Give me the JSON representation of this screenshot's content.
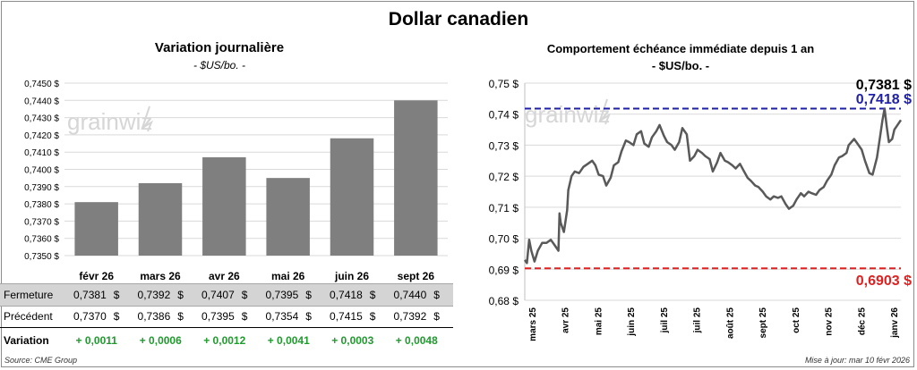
{
  "title": "Dollar canadien",
  "left_chart": {
    "title": "Variation journalière",
    "subtitle": "- $US/bo. -",
    "categories": [
      "févr 26",
      "mars 26",
      "avr 26",
      "mai 26",
      "juin 26",
      "sept 26"
    ],
    "y_ticks": [
      "0,7450 $",
      "0,7440 $",
      "0,7430 $",
      "0,7420 $",
      "0,7410 $",
      "0,7400 $",
      "0,7390 $",
      "0,7380 $",
      "0,7370 $",
      "0,7360 $",
      "0,7350 $"
    ]
  },
  "right_chart": {
    "title": "Comportement échéance immédiate depuis 1 an",
    "subtitle": "- $US/bo. -",
    "y_ticks": [
      "0,75 $",
      "0,74 $",
      "0,73 $",
      "0,72 $",
      "0,71 $",
      "0,70 $",
      "0,69 $",
      "0,68 $"
    ],
    "x_ticks": [
      "mars 25",
      "avr 25",
      "mai 25",
      "juin 25",
      "juil 25",
      "juil 25",
      "août 25",
      "sept 25",
      "oct 25",
      "nov 25",
      "déc 25",
      "janv 26"
    ],
    "last_label": "0,7381 $",
    "high_label": "0,7418 $",
    "low_label": "0,6903 $"
  },
  "table": {
    "rows": [
      {
        "label": "Fermeture",
        "values": [
          "0,7381",
          "0,7392",
          "0,7407",
          "0,7395",
          "0,7418",
          "0,7440"
        ]
      },
      {
        "label": "Précédent",
        "values": [
          "0,7370",
          "0,7386",
          "0,7395",
          "0,7354",
          "0,7415",
          "0,7392"
        ]
      },
      {
        "label": "Variation",
        "values": [
          "+ 0,0011",
          "+ 0,0006",
          "+ 0,0012",
          "+ 0,0041",
          "+ 0,0003",
          "+ 0,0048"
        ]
      }
    ],
    "currency": "$"
  },
  "source": "Source: CME Group",
  "update": "Mise à jour: mar 10 févr 2026",
  "watermark": "grainwiz",
  "chart_data": [
    {
      "type": "bar",
      "title": "Variation journalière",
      "subtitle": "- $US/bo. -",
      "categories": [
        "févr 26",
        "mars 26",
        "avr 26",
        "mai 26",
        "juin 26",
        "sept 26"
      ],
      "values": [
        0.7381,
        0.7392,
        0.7407,
        0.7395,
        0.7418,
        0.744
      ],
      "ylim": [
        0.735,
        0.745
      ],
      "color": "#7f7f7f",
      "grid": true
    },
    {
      "type": "line",
      "title": "Comportement échéance immédiate depuis 1 an",
      "subtitle": "- $US/bo. -",
      "ylim": [
        0.68,
        0.75
      ],
      "x_range": [
        "2025-03-01",
        "2026-02-10"
      ],
      "color": "#595959",
      "high_line": {
        "value": 0.7418,
        "color": "#1f1fa8"
      },
      "low_line": {
        "value": 0.6903,
        "color": "#e02020"
      },
      "points": [
        [
          "2025-03-01",
          0.693
        ],
        [
          "2025-03-03",
          0.692
        ],
        [
          "2025-03-05",
          0.6995
        ],
        [
          "2025-03-07",
          0.696
        ],
        [
          "2025-03-10",
          0.6925
        ],
        [
          "2025-03-13",
          0.696
        ],
        [
          "2025-03-17",
          0.6985
        ],
        [
          "2025-03-21",
          0.6985
        ],
        [
          "2025-03-25",
          0.6995
        ],
        [
          "2025-03-28",
          0.698
        ],
        [
          "2025-04-01",
          0.696
        ],
        [
          "2025-04-02",
          0.708
        ],
        [
          "2025-04-03",
          0.705
        ],
        [
          "2025-04-06",
          0.702
        ],
        [
          "2025-04-09",
          0.709
        ],
        [
          "2025-04-10",
          0.7155
        ],
        [
          "2025-04-13",
          0.72
        ],
        [
          "2025-04-16",
          0.7215
        ],
        [
          "2025-04-20",
          0.721
        ],
        [
          "2025-04-24",
          0.723
        ],
        [
          "2025-04-28",
          0.724
        ],
        [
          "2025-05-02",
          0.725
        ],
        [
          "2025-05-05",
          0.7235
        ],
        [
          "2025-05-08",
          0.7205
        ],
        [
          "2025-05-12",
          0.72
        ],
        [
          "2025-05-15",
          0.717
        ],
        [
          "2025-05-19",
          0.7195
        ],
        [
          "2025-05-22",
          0.7235
        ],
        [
          "2025-05-26",
          0.7245
        ],
        [
          "2025-05-29",
          0.728
        ],
        [
          "2025-06-02",
          0.7315
        ],
        [
          "2025-06-05",
          0.731
        ],
        [
          "2025-06-09",
          0.73
        ],
        [
          "2025-06-12",
          0.7335
        ],
        [
          "2025-06-16",
          0.7345
        ],
        [
          "2025-06-19",
          0.7305
        ],
        [
          "2025-06-23",
          0.7295
        ],
        [
          "2025-06-26",
          0.7325
        ],
        [
          "2025-06-30",
          0.7345
        ],
        [
          "2025-07-03",
          0.7365
        ],
        [
          "2025-07-07",
          0.733
        ],
        [
          "2025-07-10",
          0.731
        ],
        [
          "2025-07-14",
          0.73
        ],
        [
          "2025-07-17",
          0.7285
        ],
        [
          "2025-07-21",
          0.731
        ],
        [
          "2025-07-24",
          0.7355
        ],
        [
          "2025-07-28",
          0.7335
        ],
        [
          "2025-07-31",
          0.725
        ],
        [
          "2025-08-04",
          0.7265
        ],
        [
          "2025-08-07",
          0.7285
        ],
        [
          "2025-08-11",
          0.7275
        ],
        [
          "2025-08-14",
          0.7265
        ],
        [
          "2025-08-18",
          0.7255
        ],
        [
          "2025-08-21",
          0.7215
        ],
        [
          "2025-08-25",
          0.7245
        ],
        [
          "2025-08-28",
          0.7275
        ],
        [
          "2025-09-01",
          0.725
        ],
        [
          "2025-09-04",
          0.7245
        ],
        [
          "2025-09-08",
          0.7235
        ],
        [
          "2025-09-11",
          0.7225
        ],
        [
          "2025-09-15",
          0.724
        ],
        [
          "2025-09-18",
          0.722
        ],
        [
          "2025-09-22",
          0.7195
        ],
        [
          "2025-09-25",
          0.7185
        ],
        [
          "2025-09-29",
          0.717
        ],
        [
          "2025-10-02",
          0.7165
        ],
        [
          "2025-10-06",
          0.715
        ],
        [
          "2025-10-09",
          0.7135
        ],
        [
          "2025-10-13",
          0.7125
        ],
        [
          "2025-10-16",
          0.7135
        ],
        [
          "2025-10-20",
          0.713
        ],
        [
          "2025-10-23",
          0.7135
        ],
        [
          "2025-10-27",
          0.711
        ],
        [
          "2025-10-30",
          0.7095
        ],
        [
          "2025-11-03",
          0.7105
        ],
        [
          "2025-11-06",
          0.7125
        ],
        [
          "2025-11-10",
          0.7145
        ],
        [
          "2025-11-13",
          0.7135
        ],
        [
          "2025-11-17",
          0.715
        ],
        [
          "2025-11-20",
          0.7145
        ],
        [
          "2025-11-24",
          0.714
        ],
        [
          "2025-11-27",
          0.7155
        ],
        [
          "2025-12-01",
          0.7165
        ],
        [
          "2025-12-04",
          0.7185
        ],
        [
          "2025-12-08",
          0.7205
        ],
        [
          "2025-12-11",
          0.7235
        ],
        [
          "2025-12-15",
          0.726
        ],
        [
          "2025-12-18",
          0.7265
        ],
        [
          "2025-12-22",
          0.7275
        ],
        [
          "2025-12-24",
          0.73
        ],
        [
          "2025-12-29",
          0.732
        ],
        [
          "2026-01-02",
          0.73
        ],
        [
          "2026-01-05",
          0.7285
        ],
        [
          "2026-01-08",
          0.725
        ],
        [
          "2026-01-12",
          0.721
        ],
        [
          "2026-01-15",
          0.7205
        ],
        [
          "2026-01-19",
          0.726
        ],
        [
          "2026-01-22",
          0.733
        ],
        [
          "2026-01-24",
          0.738
        ],
        [
          "2026-01-26",
          0.7418
        ],
        [
          "2026-01-28",
          0.736
        ],
        [
          "2026-01-30",
          0.731
        ],
        [
          "2026-02-02",
          0.732
        ],
        [
          "2026-02-04",
          0.735
        ],
        [
          "2026-02-06",
          0.736
        ],
        [
          "2026-02-10",
          0.7381
        ]
      ]
    }
  ]
}
